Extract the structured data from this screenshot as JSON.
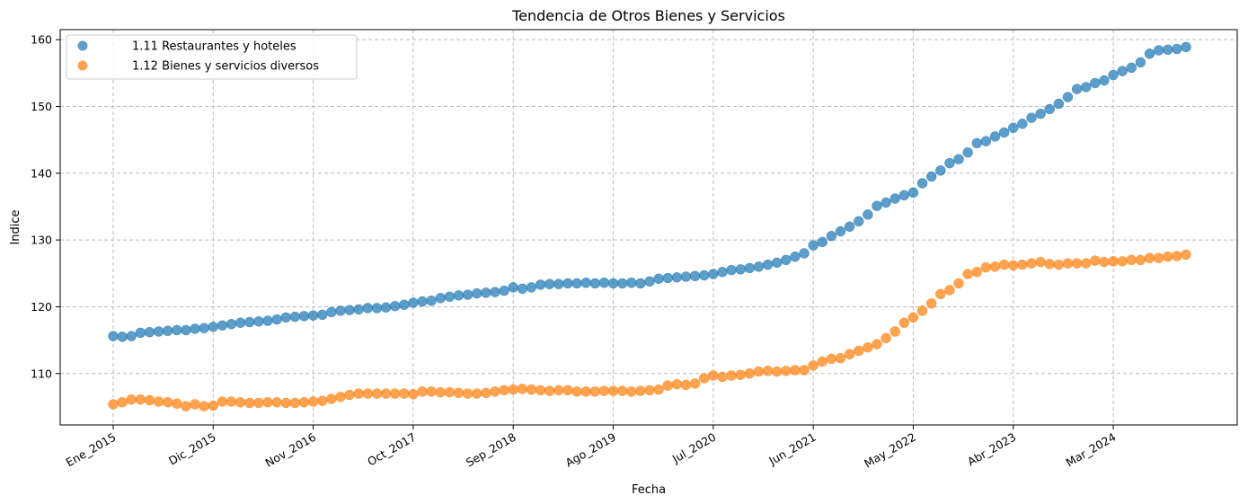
{
  "chart_data": {
    "type": "scatter",
    "title": "Tendencia de Otros Bienes y Servicios",
    "xlabel": "Fecha",
    "ylabel": "Indice",
    "legend_position": "top-left",
    "grid": true,
    "ylim": [
      102.3,
      161.5
    ],
    "yticks": [
      110,
      120,
      130,
      140,
      150,
      160
    ],
    "x_start": "Ene_2015",
    "x_end": "Sep_2024",
    "xtick_labels": [
      "Ene_2015",
      "Dic_2015",
      "Nov_2016",
      "Oct_2017",
      "Sep_2018",
      "Ago_2019",
      "Jul_2020",
      "Jun_2021",
      "May_2022",
      "Abr_2023",
      "Mar_2024"
    ],
    "series": [
      {
        "name": "1.11 Restaurantes y hoteles",
        "color": "#1f77b4",
        "values": [
          115.6,
          115.5,
          115.6,
          116.1,
          116.2,
          116.3,
          116.4,
          116.5,
          116.5,
          116.7,
          116.8,
          117.0,
          117.2,
          117.4,
          117.6,
          117.7,
          117.8,
          117.9,
          118.1,
          118.4,
          118.5,
          118.6,
          118.7,
          118.8,
          119.2,
          119.4,
          119.5,
          119.6,
          119.8,
          119.8,
          119.9,
          120.1,
          120.3,
          120.6,
          120.8,
          120.9,
          121.3,
          121.5,
          121.7,
          121.8,
          122.0,
          122.1,
          122.2,
          122.4,
          122.9,
          122.7,
          122.9,
          123.3,
          123.4,
          123.4,
          123.5,
          123.5,
          123.6,
          123.5,
          123.6,
          123.5,
          123.5,
          123.6,
          123.5,
          123.8,
          124.2,
          124.3,
          124.4,
          124.5,
          124.6,
          124.7,
          124.9,
          125.2,
          125.5,
          125.6,
          125.8,
          126.0,
          126.3,
          126.6,
          127.0,
          127.5,
          128.0,
          129.2,
          129.7,
          130.6,
          131.3,
          132.0,
          132.8,
          133.8,
          135.1,
          135.6,
          136.2,
          136.7,
          137.1,
          138.5,
          139.5,
          140.4,
          141.5,
          142.1,
          143.1,
          144.5,
          144.8,
          145.5,
          146.1,
          146.8,
          147.4,
          148.3,
          148.9,
          149.6,
          150.4,
          151.4,
          152.6,
          152.9,
          153.5,
          153.9,
          154.7,
          155.3,
          155.8,
          156.6,
          157.9,
          158.4,
          158.5,
          158.6,
          158.9
        ]
      },
      {
        "name": "1.12 Bienes y servicios diversos",
        "color": "#ff7f0e",
        "values": [
          105.4,
          105.7,
          106.1,
          106.1,
          106.0,
          105.8,
          105.7,
          105.5,
          105.1,
          105.4,
          105.1,
          105.2,
          105.8,
          105.8,
          105.7,
          105.6,
          105.6,
          105.7,
          105.7,
          105.6,
          105.6,
          105.7,
          105.8,
          105.9,
          106.2,
          106.5,
          106.8,
          107.0,
          107.0,
          107.0,
          107.0,
          107.0,
          107.0,
          106.9,
          107.3,
          107.3,
          107.2,
          107.2,
          107.1,
          107.0,
          107.0,
          107.1,
          107.3,
          107.5,
          107.6,
          107.7,
          107.6,
          107.5,
          107.4,
          107.5,
          107.5,
          107.3,
          107.3,
          107.3,
          107.4,
          107.4,
          107.4,
          107.3,
          107.4,
          107.5,
          107.6,
          108.2,
          108.4,
          108.3,
          108.5,
          109.3,
          109.7,
          109.5,
          109.7,
          109.8,
          110.0,
          110.3,
          110.4,
          110.3,
          110.4,
          110.5,
          110.5,
          111.2,
          111.8,
          112.2,
          112.3,
          112.9,
          113.4,
          113.9,
          114.4,
          115.3,
          116.3,
          117.6,
          118.4,
          119.4,
          120.5,
          121.9,
          122.5,
          123.5,
          124.9,
          125.2,
          125.9,
          126.0,
          126.3,
          126.2,
          126.3,
          126.5,
          126.7,
          126.4,
          126.3,
          126.5,
          126.5,
          126.5,
          126.9,
          126.7,
          126.8,
          126.8,
          127.0,
          127.0,
          127.3,
          127.3,
          127.5,
          127.6,
          127.8
        ]
      }
    ]
  }
}
